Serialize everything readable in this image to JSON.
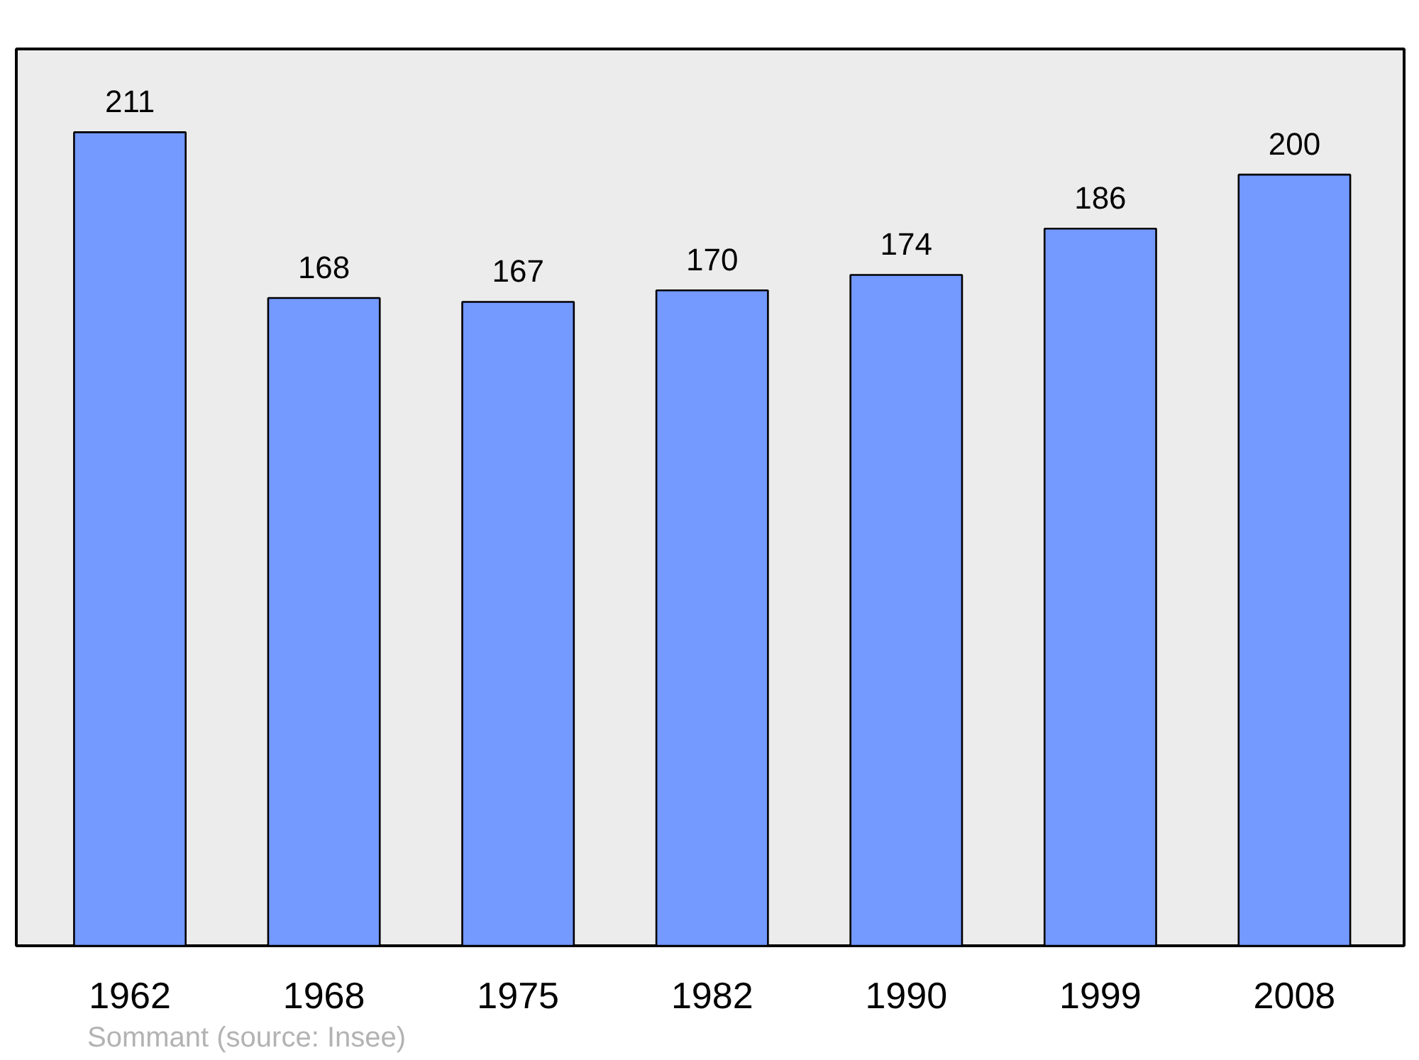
{
  "chart_data": {
    "type": "bar",
    "categories": [
      "1962",
      "1968",
      "1975",
      "1982",
      "1990",
      "1999",
      "2008"
    ],
    "values": [
      211,
      168,
      167,
      170,
      174,
      186,
      200
    ],
    "color": "#7499ff",
    "ylim": [
      0,
      232.6
    ],
    "data_labels": true,
    "grid": false,
    "annotations": [
      "Sommant    (source: Insee)"
    ]
  }
}
